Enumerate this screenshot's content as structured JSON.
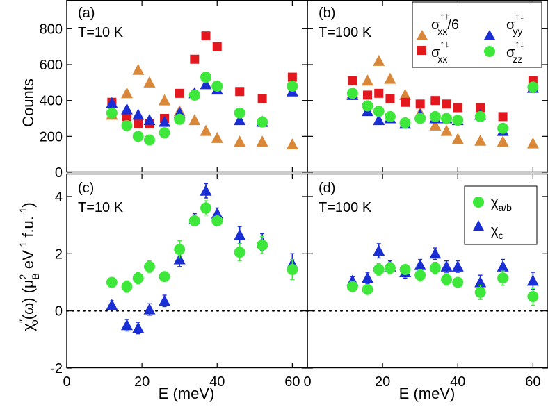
{
  "chart_data": {
    "type": "scatter",
    "xlabel": "E (meV)",
    "x_ticks": [
      "0",
      "20",
      "40",
      "60"
    ],
    "xlim": [
      0,
      64
    ],
    "rows": [
      {
        "ylabel": "Counts",
        "ylim": [
          0,
          960
        ],
        "y_ticks": [
          "0",
          "200",
          "400",
          "600",
          "800"
        ],
        "legend": {
          "location": "top-right of panel (b)",
          "entries": [
            {
              "id": "s_xx_uu6",
              "sigma": "σ",
              "sup": "↑↑",
              "sub": "xx",
              "suffix": "/6"
            },
            {
              "id": "s_yy_ud",
              "sigma": "σ",
              "sup": "↑↓",
              "sub": "yy",
              "suffix": ""
            },
            {
              "id": "s_xx_ud",
              "sigma": "σ",
              "sup": "↑↓",
              "sub": "xx",
              "suffix": ""
            },
            {
              "id": "s_zz_ud",
              "sigma": "σ",
              "sup": "↑↓",
              "sub": "zz",
              "suffix": ""
            }
          ]
        },
        "panels": [
          {
            "label": "(a)",
            "temperature": "T=10 K",
            "series": [
              {
                "id": "s_xx_uu6",
                "marker": "triangle",
                "color": "#d9883a",
                "x": [
                  12,
                  16,
                  19,
                  22,
                  26,
                  30,
                  34,
                  37,
                  40,
                  46,
                  52,
                  60
                ],
                "y": [
                  320,
                  440,
                  570,
                  500,
                  400,
                  340,
                  290,
                  230,
                  190,
                  170,
                  170,
                  155
                ]
              },
              {
                "id": "s_xx_ud",
                "marker": "square",
                "color": "#e3171e",
                "x": [
                  12,
                  16,
                  19,
                  22,
                  26,
                  30,
                  34,
                  37,
                  40,
                  46,
                  52,
                  60
                ],
                "y": [
                  390,
                  310,
                  270,
                  270,
                  300,
                  440,
                  630,
                  760,
                  700,
                  450,
                  410,
                  530
                ]
              },
              {
                "id": "s_yy_ud",
                "marker": "triangle",
                "color": "#1a2ed6",
                "x": [
                  12,
                  16,
                  19,
                  22,
                  26,
                  30,
                  34,
                  37,
                  40,
                  46,
                  52,
                  60
                ],
                "y": [
                  385,
                  350,
                  320,
                  290,
                  280,
                  330,
                  440,
                  490,
                  460,
                  290,
                  280,
                  450
                ]
              },
              {
                "id": "s_zz_ud",
                "marker": "circle",
                "color": "#3ee83a",
                "x": [
                  12,
                  16,
                  19,
                  22,
                  26,
                  30,
                  34,
                  37,
                  40,
                  46,
                  52,
                  60
                ],
                "y": [
                  330,
                  260,
                  200,
                  180,
                  220,
                  295,
                  430,
                  530,
                  480,
                  330,
                  280,
                  480
                ]
              }
            ]
          },
          {
            "label": "(b)",
            "temperature": "T=100 K",
            "series": [
              {
                "id": "s_xx_uu6",
                "marker": "triangle",
                "color": "#d9883a",
                "x": [
                  12,
                  16,
                  19,
                  22,
                  26,
                  30,
                  34,
                  37,
                  40,
                  46,
                  52,
                  60
                ],
                "y": [
                  440,
                  510,
                  620,
                  520,
                  430,
                  330,
                  260,
                  230,
                  185,
                  175,
                  170,
                  160
                ]
              },
              {
                "id": "s_xx_ud",
                "marker": "square",
                "color": "#e3171e",
                "x": [
                  12,
                  16,
                  19,
                  22,
                  26,
                  30,
                  34,
                  37,
                  40,
                  46,
                  52,
                  60
                ],
                "y": [
                  510,
                  430,
                  440,
                  410,
                  390,
                  380,
                  400,
                  380,
                  360,
                  360,
                  310,
                  510
                ]
              },
              {
                "id": "s_yy_ud",
                "marker": "triangle",
                "color": "#1a2ed6",
                "x": [
                  12,
                  16,
                  19,
                  22,
                  26,
                  30,
                  34,
                  37,
                  40,
                  46,
                  52,
                  60
                ],
                "y": [
                  430,
                  340,
                  290,
                  300,
                  270,
                  320,
                  300,
                  300,
                  290,
                  320,
                  230,
                  470
                ]
              },
              {
                "id": "s_zz_ud",
                "marker": "circle",
                "color": "#3ee83a",
                "x": [
                  12,
                  16,
                  19,
                  22,
                  26,
                  30,
                  34,
                  37,
                  40,
                  46,
                  52,
                  60
                ],
                "y": [
                  440,
                  370,
                  340,
                  310,
                  275,
                  300,
                  310,
                  300,
                  290,
                  310,
                  245,
                  475
                ]
              }
            ]
          }
        ]
      },
      {
        "ylabel": "χ″o(ω) (μ2B eV−1 f.u.−1)",
        "ylabel_parts": {
          "chi": "χ",
          "prime": "″",
          "sub": "o",
          "omega": "(ω) (μ",
          "mu_sup": "2",
          "mu_sub": "B",
          "unit": " eV",
          "ev_sup": "-1",
          "fu": " f.u.",
          "fu_sup": "-1",
          "close": ")"
        },
        "ylim": [
          -2,
          4.8
        ],
        "y_ticks": [
          "-2",
          "0",
          "2",
          "4"
        ],
        "zero_line": "dotted",
        "legend": {
          "location": "top-right of panel (d)",
          "entries": [
            {
              "id": "chi_ab",
              "chi": "χ",
              "sub": "a/b"
            },
            {
              "id": "chi_c",
              "chi": "χ",
              "sub": "c"
            }
          ]
        },
        "panels": [
          {
            "label": "(c)",
            "temperature": "T=10 K",
            "series": [
              {
                "id": "chi_c",
                "marker": "triangle",
                "color": "#1a2ed6",
                "x": [
                  12,
                  16,
                  19,
                  22,
                  26,
                  30,
                  34,
                  37,
                  40,
                  46,
                  52,
                  60
                ],
                "y": [
                  0.2,
                  -0.5,
                  -0.6,
                  0.05,
                  0.35,
                  1.8,
                  3.2,
                  4.2,
                  3.4,
                  2.65,
                  2.4,
                  1.65
                ],
                "err": [
                  0.15,
                  0.2,
                  0.2,
                  0.2,
                  0.2,
                  0.25,
                  0.2,
                  0.25,
                  0.2,
                  0.3,
                  0.3,
                  0.35
                ]
              },
              {
                "id": "chi_ab",
                "marker": "circle",
                "color": "#3ee83a",
                "x": [
                  12,
                  16,
                  19,
                  22,
                  26,
                  30,
                  34,
                  37,
                  40,
                  46,
                  52,
                  60
                ],
                "y": [
                  1.0,
                  0.85,
                  1.15,
                  1.55,
                  1.2,
                  2.15,
                  3.15,
                  3.6,
                  3.15,
                  2.05,
                  2.3,
                  1.45
                ],
                "err": [
                  0.15,
                  0.2,
                  0.2,
                  0.2,
                  0.15,
                  0.3,
                  0.15,
                  0.25,
                  0.15,
                  0.3,
                  0.3,
                  0.35
                ]
              }
            ]
          },
          {
            "label": "(d)",
            "temperature": "T=100 K",
            "series": [
              {
                "id": "chi_c",
                "marker": "triangle",
                "color": "#1a2ed6",
                "x": [
                  12,
                  16,
                  19,
                  22,
                  26,
                  30,
                  34,
                  37,
                  40,
                  46,
                  52,
                  60
                ],
                "y": [
                  1.05,
                  1.15,
                  2.1,
                  1.55,
                  1.35,
                  1.6,
                  2.0,
                  1.55,
                  1.55,
                  1.0,
                  1.55,
                  1.05
                ],
                "err": [
                  0.15,
                  0.2,
                  0.25,
                  0.2,
                  0.2,
                  0.2,
                  0.2,
                  0.2,
                  0.2,
                  0.25,
                  0.25,
                  0.3
                ]
              },
              {
                "id": "chi_ab",
                "marker": "circle",
                "color": "#3ee83a",
                "x": [
                  12,
                  16,
                  19,
                  22,
                  26,
                  30,
                  34,
                  37,
                  40,
                  46,
                  52,
                  60
                ],
                "y": [
                  0.85,
                  0.75,
                  1.45,
                  1.5,
                  1.45,
                  1.25,
                  1.5,
                  1.1,
                  1.0,
                  0.65,
                  1.15,
                  0.5
                ],
                "err": [
                  0.15,
                  0.15,
                  0.2,
                  0.2,
                  0.15,
                  0.2,
                  0.2,
                  0.2,
                  0.15,
                  0.25,
                  0.25,
                  0.3
                ]
              }
            ]
          }
        ]
      }
    ]
  }
}
